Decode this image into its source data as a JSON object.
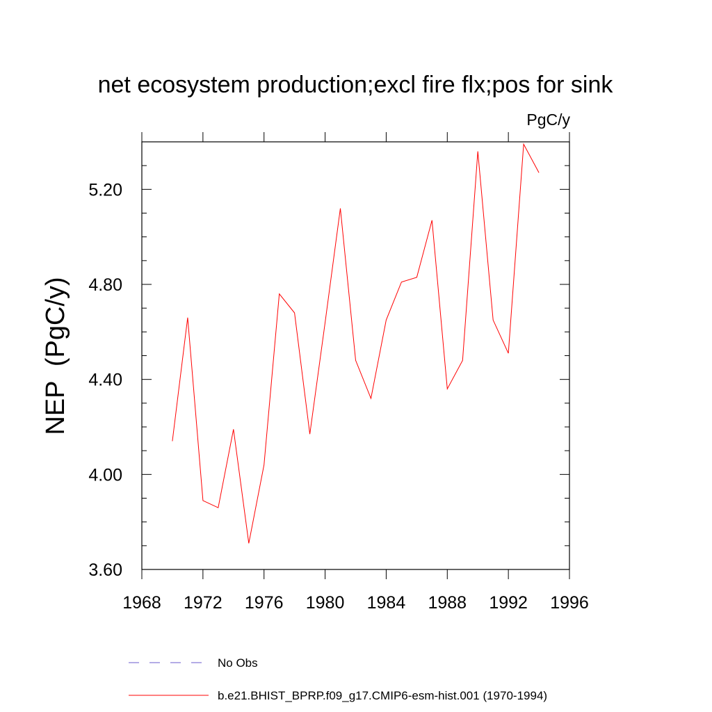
{
  "chart_data": {
    "type": "line",
    "title": "net ecosystem production;excl fire flx;pos for sink",
    "units": "PgC/y",
    "xlabel": "",
    "ylabel": "NEP  (PgC/y)",
    "xlim": [
      1968,
      1996
    ],
    "ylim": [
      3.6,
      5.4
    ],
    "x_ticks": [
      1968,
      1972,
      1976,
      1980,
      1984,
      1988,
      1992,
      1996
    ],
    "x_tick_labels": [
      "1968",
      "1972",
      "1976",
      "1980",
      "1984",
      "1988",
      "1992",
      "1996"
    ],
    "y_ticks": [
      3.6,
      4.0,
      4.4,
      4.8,
      5.2
    ],
    "y_tick_labels": [
      "3.60",
      "4.00",
      "4.40",
      "4.80",
      "5.20"
    ],
    "grid": false,
    "series": [
      {
        "name": "b.e21.BHIST_BPRP.f09_g17.CMIP6-esm-hist.001 (1970-1994)",
        "color": "#ff0000",
        "dash": "solid",
        "x": [
          1970,
          1971,
          1972,
          1973,
          1974,
          1975,
          1976,
          1977,
          1978,
          1979,
          1980,
          1981,
          1982,
          1983,
          1984,
          1985,
          1986,
          1987,
          1988,
          1989,
          1990,
          1991,
          1992,
          1993,
          1994
        ],
        "values": [
          4.14,
          4.66,
          3.89,
          3.86,
          4.19,
          3.71,
          4.04,
          4.76,
          4.68,
          4.17,
          4.64,
          5.12,
          4.48,
          4.32,
          4.65,
          4.81,
          4.83,
          5.07,
          4.36,
          4.48,
          5.36,
          4.65,
          4.51,
          5.39,
          5.27
        ]
      }
    ],
    "legend": [
      {
        "label": "No Obs",
        "color": "#6a5acd",
        "dash": "dashed"
      },
      {
        "label": "b.e21.BHIST_BPRP.f09_g17.CMIP6-esm-hist.001 (1970-1994)",
        "color": "#ff0000",
        "dash": "solid"
      }
    ]
  }
}
